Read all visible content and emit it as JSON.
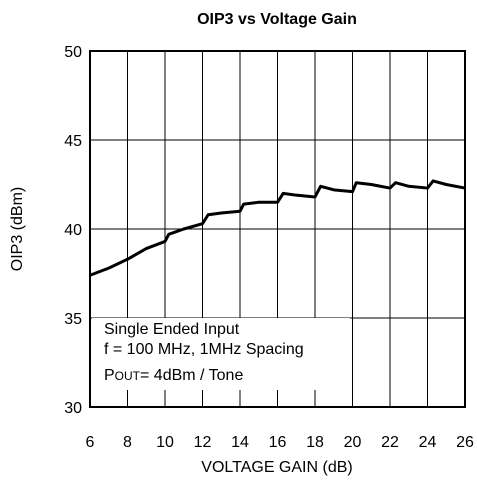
{
  "chart_data": {
    "type": "line",
    "title": "OIP3 vs Voltage Gain",
    "xlabel": "VOLTAGE GAIN (dB)",
    "ylabel": "OIP3 (dBm)",
    "x": [
      6,
      7,
      8,
      9,
      10,
      10.2,
      11,
      12,
      12.3,
      13,
      14,
      14.2,
      15,
      16,
      16.3,
      17,
      18,
      18.3,
      19,
      20,
      20.2,
      21,
      22,
      22.3,
      23,
      24,
      24.3,
      25,
      26
    ],
    "series": [
      {
        "name": "OIP3",
        "color": "#000000",
        "values": [
          37.4,
          37.8,
          38.3,
          38.9,
          39.3,
          39.7,
          40.0,
          40.3,
          40.8,
          40.9,
          41.0,
          41.4,
          41.5,
          41.5,
          42.0,
          41.9,
          41.8,
          42.4,
          42.2,
          42.1,
          42.6,
          42.5,
          42.3,
          42.6,
          42.4,
          42.3,
          42.7,
          42.5,
          42.3
        ]
      }
    ],
    "xlim": [
      6,
      26
    ],
    "xticks": [
      6,
      8,
      10,
      12,
      14,
      16,
      18,
      20,
      22,
      24,
      26
    ],
    "ylim": [
      30,
      50
    ],
    "yticks": [
      30,
      35,
      40,
      45,
      50
    ],
    "grid": true,
    "annotation": {
      "lines": [
        "Single Ended Input",
        "f = 100 MHz, 1MHz Spacing"
      ],
      "pout": {
        "main": "P",
        "sub": "OUT",
        "rest": "= 4dBm / Tone"
      }
    }
  }
}
